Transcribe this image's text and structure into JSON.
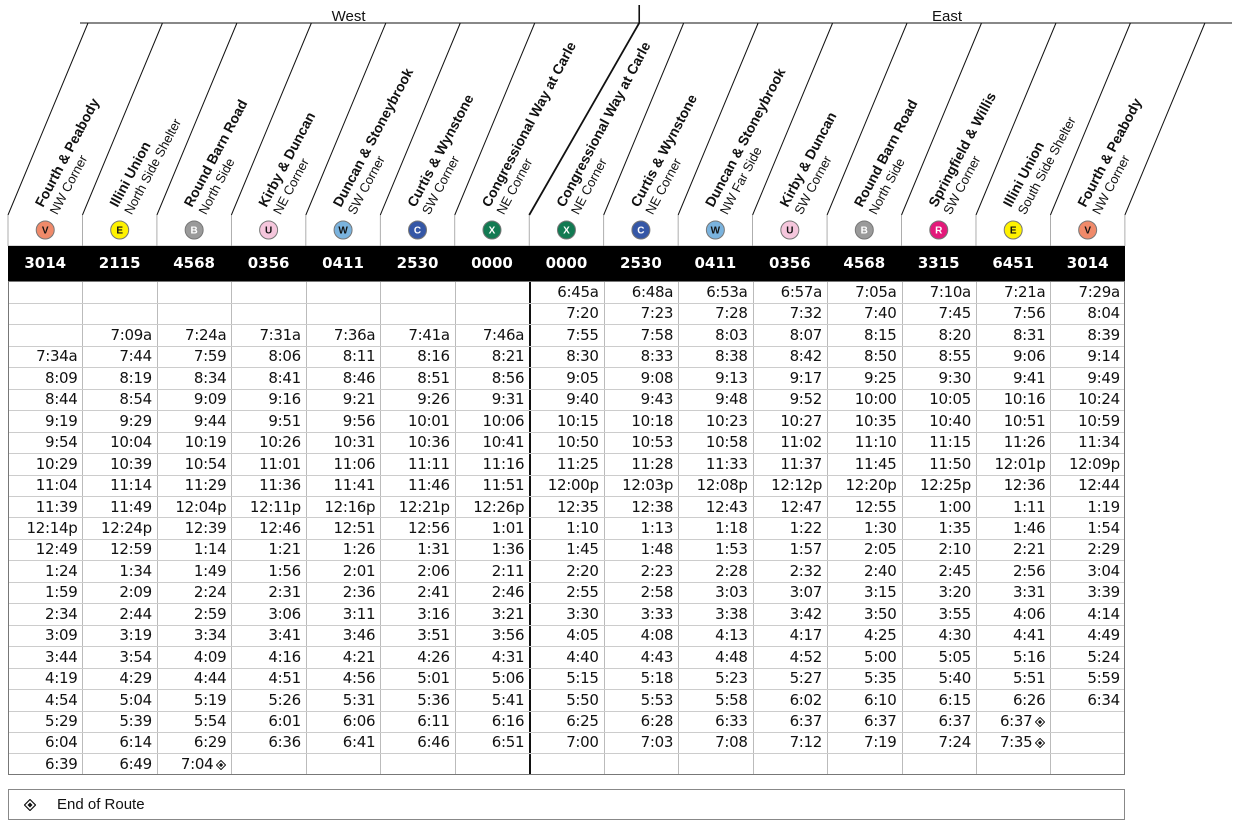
{
  "directions": {
    "west": "West",
    "east": "East"
  },
  "stops": [
    {
      "name": "Fourth & Peabody",
      "sub": "NW Corner",
      "route": "V",
      "color": "#f08a6a",
      "code": "3014"
    },
    {
      "name": "Illini Union",
      "sub": "North Side Shelter",
      "route": "E",
      "color": "#fff200",
      "code": "2115"
    },
    {
      "name": "Round Barn Road",
      "sub": "North Side",
      "route": "B",
      "color": "#9a9a9a",
      "code": "4568"
    },
    {
      "name": "Kirby & Duncan",
      "sub": "NE Corner",
      "route": "U",
      "color": "#f5c6dc",
      "code": "0356"
    },
    {
      "name": "Duncan & Stoneybrook",
      "sub": "SW Corner",
      "route": "W",
      "color": "#7ab3de",
      "code": "0411"
    },
    {
      "name": "Curtis & Wynstone",
      "sub": "SW Corner",
      "route": "C",
      "color": "#3557a6",
      "code": "2530"
    },
    {
      "name": "Congressional Way at Carle",
      "sub": "NE Corner",
      "route": "X",
      "color": "#127a52",
      "code": "0000"
    },
    {
      "name": "Congressional Way at Carle",
      "sub": "NE Corner",
      "route": "X",
      "color": "#127a52",
      "code": "0000"
    },
    {
      "name": "Curtis & Wynstone",
      "sub": "NE Corner",
      "route": "C",
      "color": "#3557a6",
      "code": "2530"
    },
    {
      "name": "Duncan & Stoneybrook",
      "sub": "NW Far Side",
      "route": "W",
      "color": "#7ab3de",
      "code": "0411"
    },
    {
      "name": "Kirby & Duncan",
      "sub": "SW Corner",
      "route": "U",
      "color": "#f5c6dc",
      "code": "0356"
    },
    {
      "name": "Round Barn Road",
      "sub": "North Side",
      "route": "B",
      "color": "#9a9a9a",
      "code": "4568"
    },
    {
      "name": "Springfield & Willis",
      "sub": "SW Corner",
      "route": "R",
      "color": "#e3197a",
      "code": "3315"
    },
    {
      "name": "Illini Union",
      "sub": "South Side Shelter",
      "route": "E",
      "color": "#fff200",
      "code": "6451"
    },
    {
      "name": "Fourth & Peabody",
      "sub": "NW Corner",
      "route": "V",
      "color": "#f08a6a",
      "code": "3014"
    }
  ],
  "rows": [
    [
      "",
      "",
      "",
      "",
      "",
      "",
      "",
      "6:45a",
      "6:48a",
      "6:53a",
      "6:57a",
      "7:05a",
      "7:10a",
      "7:21a",
      "7:29a"
    ],
    [
      "",
      "",
      "",
      "",
      "",
      "",
      "",
      "7:20",
      "7:23",
      "7:28",
      "7:32",
      "7:40",
      "7:45",
      "7:56",
      "8:04"
    ],
    [
      "",
      "7:09a",
      "7:24a",
      "7:31a",
      "7:36a",
      "7:41a",
      "7:46a",
      "7:55",
      "7:58",
      "8:03",
      "8:07",
      "8:15",
      "8:20",
      "8:31",
      "8:39"
    ],
    [
      "7:34a",
      "7:44",
      "7:59",
      "8:06",
      "8:11",
      "8:16",
      "8:21",
      "8:30",
      "8:33",
      "8:38",
      "8:42",
      "8:50",
      "8:55",
      "9:06",
      "9:14"
    ],
    [
      "8:09",
      "8:19",
      "8:34",
      "8:41",
      "8:46",
      "8:51",
      "8:56",
      "9:05",
      "9:08",
      "9:13",
      "9:17",
      "9:25",
      "9:30",
      "9:41",
      "9:49"
    ],
    [
      "8:44",
      "8:54",
      "9:09",
      "9:16",
      "9:21",
      "9:26",
      "9:31",
      "9:40",
      "9:43",
      "9:48",
      "9:52",
      "10:00",
      "10:05",
      "10:16",
      "10:24"
    ],
    [
      "9:19",
      "9:29",
      "9:44",
      "9:51",
      "9:56",
      "10:01",
      "10:06",
      "10:15",
      "10:18",
      "10:23",
      "10:27",
      "10:35",
      "10:40",
      "10:51",
      "10:59"
    ],
    [
      "9:54",
      "10:04",
      "10:19",
      "10:26",
      "10:31",
      "10:36",
      "10:41",
      "10:50",
      "10:53",
      "10:58",
      "11:02",
      "11:10",
      "11:15",
      "11:26",
      "11:34"
    ],
    [
      "10:29",
      "10:39",
      "10:54",
      "11:01",
      "11:06",
      "11:11",
      "11:16",
      "11:25",
      "11:28",
      "11:33",
      "11:37",
      "11:45",
      "11:50",
      "12:01p",
      "12:09p"
    ],
    [
      "11:04",
      "11:14",
      "11:29",
      "11:36",
      "11:41",
      "11:46",
      "11:51",
      "12:00p",
      "12:03p",
      "12:08p",
      "12:12p",
      "12:20p",
      "12:25p",
      "12:36",
      "12:44"
    ],
    [
      "11:39",
      "11:49",
      "12:04p",
      "12:11p",
      "12:16p",
      "12:21p",
      "12:26p",
      "12:35",
      "12:38",
      "12:43",
      "12:47",
      "12:55",
      "1:00",
      "1:11",
      "1:19"
    ],
    [
      "12:14p",
      "12:24p",
      "12:39",
      "12:46",
      "12:51",
      "12:56",
      "1:01",
      "1:10",
      "1:13",
      "1:18",
      "1:22",
      "1:30",
      "1:35",
      "1:46",
      "1:54"
    ],
    [
      "12:49",
      "12:59",
      "1:14",
      "1:21",
      "1:26",
      "1:31",
      "1:36",
      "1:45",
      "1:48",
      "1:53",
      "1:57",
      "2:05",
      "2:10",
      "2:21",
      "2:29"
    ],
    [
      "1:24",
      "1:34",
      "1:49",
      "1:56",
      "2:01",
      "2:06",
      "2:11",
      "2:20",
      "2:23",
      "2:28",
      "2:32",
      "2:40",
      "2:45",
      "2:56",
      "3:04"
    ],
    [
      "1:59",
      "2:09",
      "2:24",
      "2:31",
      "2:36",
      "2:41",
      "2:46",
      "2:55",
      "2:58",
      "3:03",
      "3:07",
      "3:15",
      "3:20",
      "3:31",
      "3:39"
    ],
    [
      "2:34",
      "2:44",
      "2:59",
      "3:06",
      "3:11",
      "3:16",
      "3:21",
      "3:30",
      "3:33",
      "3:38",
      "3:42",
      "3:50",
      "3:55",
      "4:06",
      "4:14"
    ],
    [
      "3:09",
      "3:19",
      "3:34",
      "3:41",
      "3:46",
      "3:51",
      "3:56",
      "4:05",
      "4:08",
      "4:13",
      "4:17",
      "4:25",
      "4:30",
      "4:41",
      "4:49"
    ],
    [
      "3:44",
      "3:54",
      "4:09",
      "4:16",
      "4:21",
      "4:26",
      "4:31",
      "4:40",
      "4:43",
      "4:48",
      "4:52",
      "5:00",
      "5:05",
      "5:16",
      "5:24"
    ],
    [
      "4:19",
      "4:29",
      "4:44",
      "4:51",
      "4:56",
      "5:01",
      "5:06",
      "5:15",
      "5:18",
      "5:23",
      "5:27",
      "5:35",
      "5:40",
      "5:51",
      "5:59"
    ],
    [
      "4:54",
      "5:04",
      "5:19",
      "5:26",
      "5:31",
      "5:36",
      "5:41",
      "5:50",
      "5:53",
      "5:58",
      "6:02",
      "6:10",
      "6:15",
      "6:26",
      "6:34"
    ],
    [
      "5:29",
      "5:39",
      "5:54",
      "6:01",
      "6:06",
      "6:11",
      "6:16",
      "6:25",
      "6:28",
      "6:33",
      "6:37",
      "6:37",
      "6:37",
      "6:37",
      ""
    ],
    [
      "6:04",
      "6:14",
      "6:29",
      "6:36",
      "6:41",
      "6:46",
      "6:51",
      "7:00",
      "7:03",
      "7:08",
      "7:12",
      "7:19",
      "7:24",
      "7:35",
      ""
    ],
    [
      "6:39",
      "6:49",
      "7:04",
      "",
      "",
      "",
      "",
      "",
      "",
      "",
      "",
      "",
      "",
      "",
      ""
    ]
  ],
  "end_marks": [
    {
      "row": 20,
      "col": 13
    },
    {
      "row": 21,
      "col": 13
    },
    {
      "row": 22,
      "col": 2
    }
  ],
  "legend": {
    "label": "End of Route",
    "icon": "end-of-route-diamond-icon"
  }
}
